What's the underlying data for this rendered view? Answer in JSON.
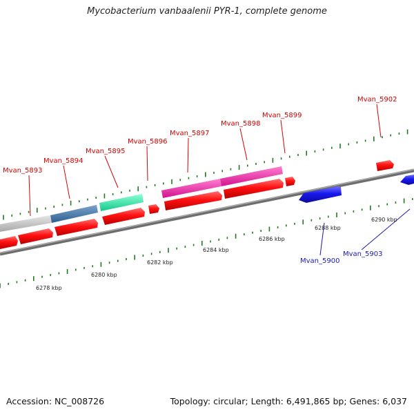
{
  "title": "Mycobacterium vanbaalenii PYR-1, complete genome",
  "footer": {
    "accession": "Accession: NC_008726",
    "summary": "Topology: circular; Length: 6,491,865 bp; Genes: 6,037"
  },
  "axis_labels": [
    "6278 kbp",
    "6280 kbp",
    "6282 kbp",
    "6284 kbp",
    "6286 kbp",
    "6288 kbp",
    "6290 kbp"
  ],
  "gene_labels": {
    "forward": [
      "Mvan_5893",
      "Mvan_5894",
      "Mvan_5895",
      "Mvan_5896",
      "Mvan_5897",
      "Mvan_5898",
      "Mvan_5899",
      "Mvan_5902"
    ],
    "reverse": [
      "Mvan_5900",
      "Mvan_5903"
    ]
  },
  "colors": {
    "forward_label": "#d40000",
    "reverse_label": "#1a1aa8",
    "forward_gene": "#ff1010",
    "reverse_gene": "#1818ee",
    "tick": "#1f7a1f",
    "backbone": "#7a7a7a"
  }
}
